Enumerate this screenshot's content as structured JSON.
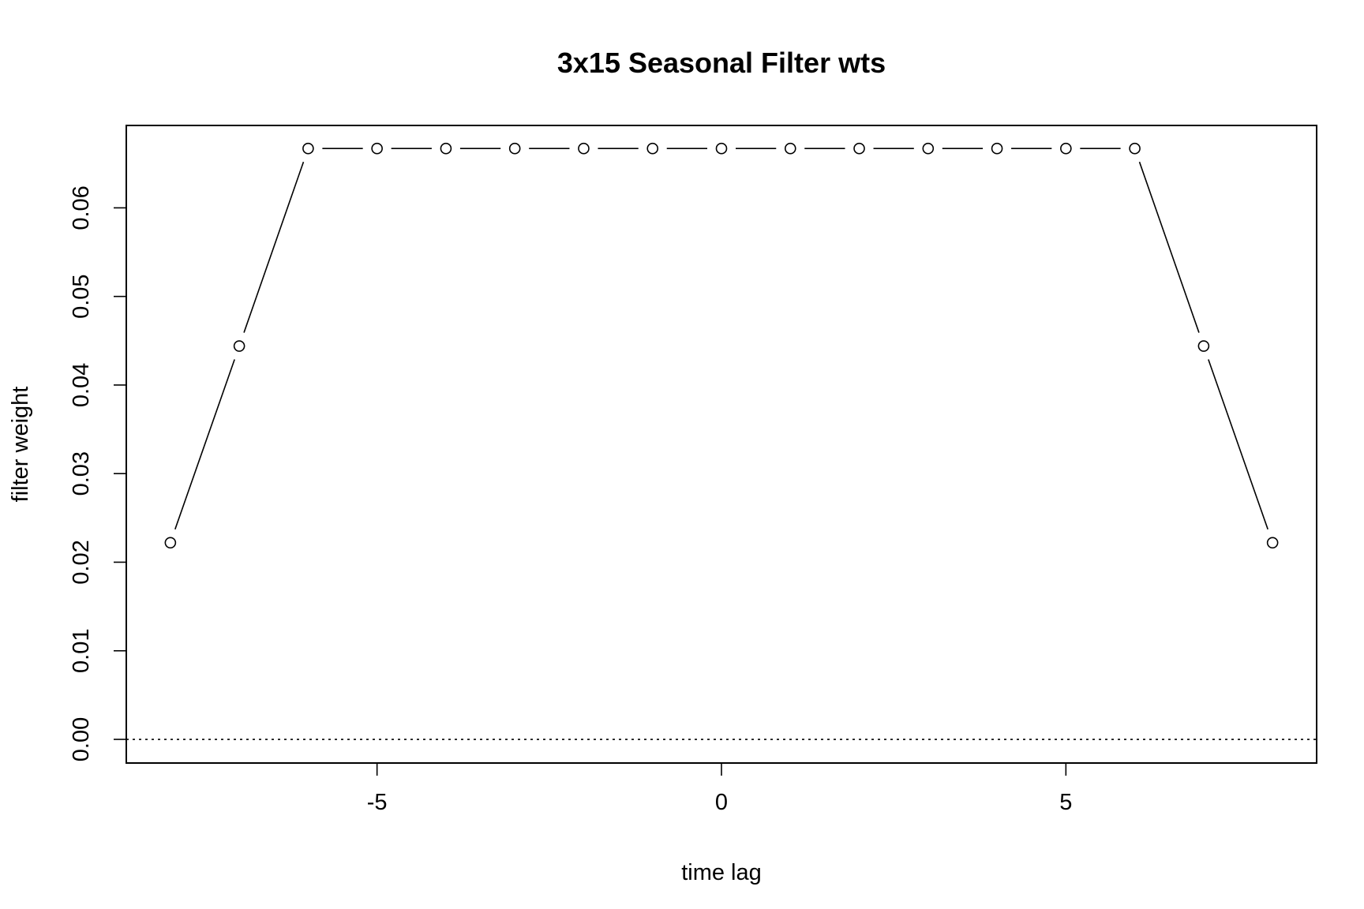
{
  "chart_data": {
    "type": "line",
    "title": "3x15 Seasonal Filter wts",
    "xlabel": "time lag",
    "ylabel": "filter weight",
    "xlim": [
      -8.64,
      8.64
    ],
    "ylim": [
      -0.00267,
      0.0693
    ],
    "x_ticks": [
      {
        "value": -5,
        "label": "-5"
      },
      {
        "value": 0,
        "label": "0"
      },
      {
        "value": 5,
        "label": "5"
      }
    ],
    "y_ticks": [
      {
        "value": 0.0,
        "label": "0.00"
      },
      {
        "value": 0.01,
        "label": "0.01"
      },
      {
        "value": 0.02,
        "label": "0.02"
      },
      {
        "value": 0.03,
        "label": "0.03"
      },
      {
        "value": 0.04,
        "label": "0.04"
      },
      {
        "value": 0.05,
        "label": "0.05"
      },
      {
        "value": 0.06,
        "label": "0.06"
      }
    ],
    "series": [
      {
        "x": [
          -8,
          -7,
          -6,
          -5,
          -4,
          -3,
          -2,
          -1,
          0,
          1,
          2,
          3,
          4,
          5,
          6,
          7,
          8
        ],
        "values": [
          0.0222,
          0.0444,
          0.0667,
          0.0667,
          0.0667,
          0.0667,
          0.0667,
          0.0667,
          0.0667,
          0.0667,
          0.0667,
          0.0667,
          0.0667,
          0.0667,
          0.0667,
          0.0444,
          0.0222
        ],
        "style": "both (points and lines)",
        "marker": "open circle",
        "color": "#000000"
      }
    ],
    "reference_line": {
      "y": 0,
      "style": "dotted"
    },
    "grid": false,
    "legend": "none"
  }
}
